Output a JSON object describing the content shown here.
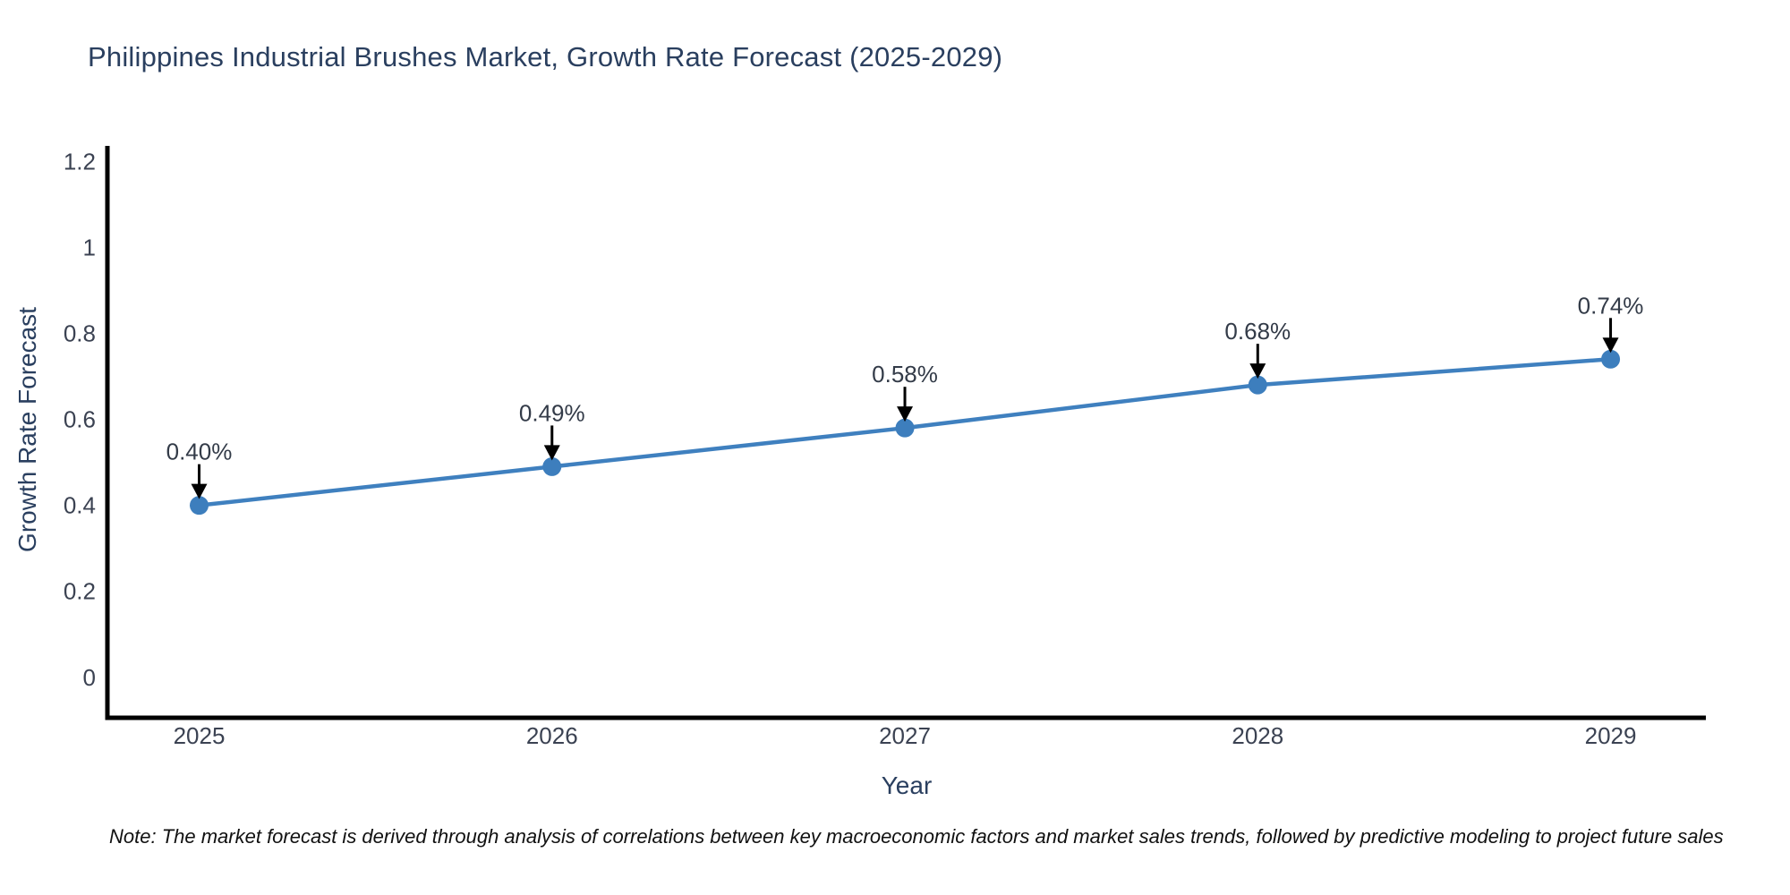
{
  "note": "Note: The market forecast is derived through analysis of correlations between key macroeconomic factors and market sales trends, followed by predictive modeling to project future sales",
  "chart_data": {
    "type": "line",
    "title": "Philippines Industrial Brushes Market, Growth Rate Forecast (2025-2029)",
    "xlabel": "Year",
    "ylabel": "Growth Rate Forecast",
    "x": [
      2025,
      2026,
      2027,
      2028,
      2029
    ],
    "values": [
      0.4,
      0.49,
      0.58,
      0.68,
      0.74
    ],
    "point_labels": [
      "0.40%",
      "0.49%",
      "0.58%",
      "0.68%",
      "0.74%"
    ],
    "xticks": [
      2025,
      2026,
      2027,
      2028,
      2029
    ],
    "xtick_labels": [
      "2025",
      "2026",
      "2027",
      "2028",
      "2029"
    ],
    "yticks": [
      0,
      0.2,
      0.4,
      0.6,
      0.8,
      1,
      1.2
    ],
    "ytick_labels": [
      "0",
      "0.2",
      "0.4",
      "0.6",
      "0.8",
      "1",
      "1.2"
    ],
    "xlim": [
      2024.74,
      2029.27
    ],
    "ylim": [
      -0.094,
      1.236
    ],
    "grid": false,
    "legend": false,
    "colors": {
      "line": "#3f80bf",
      "marker": "#3d7ebd",
      "arrow": "#000000",
      "axis": "#000000",
      "title_text": "#2a3f5f",
      "tick_text": "#3b4252"
    }
  }
}
